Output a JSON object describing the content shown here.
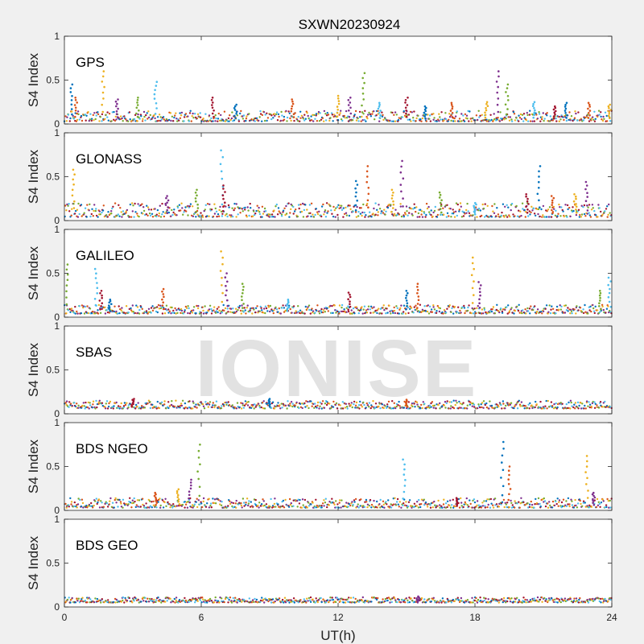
{
  "figure": {
    "title": "SXWN20230924",
    "xlabel": "UT(h)",
    "ylabel": "S4 Index",
    "watermark": "IONISE"
  },
  "colors": {
    "background": "#f0f0f0",
    "axes_bg": "#ffffff",
    "series": [
      "#0072BD",
      "#D95319",
      "#EDB120",
      "#7E2F8E",
      "#77AC30",
      "#4DBEEE",
      "#A2142F"
    ]
  },
  "chart_data": [
    {
      "type": "scatter",
      "label": "GPS",
      "xlim": [
        0,
        24
      ],
      "ylim": [
        0,
        1
      ],
      "xticks": [
        0,
        6,
        12,
        18,
        24
      ],
      "yticks": [
        0,
        0.5,
        1
      ],
      "xtick_labels": [],
      "ytick_labels": [
        "0",
        "0.5",
        "1"
      ],
      "baseline": [
        0.03,
        0.15
      ],
      "spikes": [
        [
          0.3,
          0.45
        ],
        [
          0.5,
          0.3
        ],
        [
          1.7,
          0.6
        ],
        [
          2.3,
          0.28
        ],
        [
          3.2,
          0.3
        ],
        [
          4.0,
          0.48
        ],
        [
          6.5,
          0.3
        ],
        [
          7.5,
          0.22
        ],
        [
          10.0,
          0.28
        ],
        [
          12.0,
          0.32
        ],
        [
          12.5,
          0.3
        ],
        [
          13.1,
          0.58
        ],
        [
          13.8,
          0.24
        ],
        [
          15.0,
          0.3
        ],
        [
          15.8,
          0.2
        ],
        [
          17.0,
          0.24
        ],
        [
          18.5,
          0.25
        ],
        [
          19.0,
          0.6
        ],
        [
          19.4,
          0.45
        ],
        [
          20.6,
          0.25
        ],
        [
          21.5,
          0.2
        ],
        [
          22.0,
          0.24
        ],
        [
          23.0,
          0.24
        ],
        [
          23.9,
          0.22
        ]
      ]
    },
    {
      "type": "scatter",
      "label": "GLONASS",
      "xlim": [
        0,
        24
      ],
      "ylim": [
        0,
        1
      ],
      "xticks": [
        0,
        6,
        12,
        18,
        24
      ],
      "yticks": [
        0,
        0.5,
        1
      ],
      "xtick_labels": [],
      "ytick_labels": [
        "0",
        "0.5",
        "1"
      ],
      "baseline": [
        0.04,
        0.2
      ],
      "spikes": [
        [
          0.4,
          0.58
        ],
        [
          4.5,
          0.28
        ],
        [
          5.8,
          0.35
        ],
        [
          6.9,
          0.8
        ],
        [
          7.0,
          0.4
        ],
        [
          12.8,
          0.45
        ],
        [
          13.3,
          0.62
        ],
        [
          14.4,
          0.35
        ],
        [
          14.8,
          0.68
        ],
        [
          16.5,
          0.32
        ],
        [
          18.0,
          0.2
        ],
        [
          20.3,
          0.3
        ],
        [
          20.8,
          0.62
        ],
        [
          21.4,
          0.28
        ],
        [
          22.4,
          0.3
        ],
        [
          22.9,
          0.44
        ]
      ]
    },
    {
      "type": "scatter",
      "label": "GALILEO",
      "xlim": [
        0,
        24
      ],
      "ylim": [
        0,
        1
      ],
      "xticks": [
        0,
        6,
        12,
        18,
        24
      ],
      "yticks": [
        0,
        0.5,
        1
      ],
      "xtick_labels": [],
      "ytick_labels": [
        "0",
        "0.5",
        "1"
      ],
      "baseline": [
        0.04,
        0.14
      ],
      "spikes": [
        [
          0.1,
          0.6
        ],
        [
          1.4,
          0.55
        ],
        [
          1.6,
          0.3
        ],
        [
          2.0,
          0.2
        ],
        [
          4.3,
          0.32
        ],
        [
          6.9,
          0.75
        ],
        [
          7.1,
          0.5
        ],
        [
          7.8,
          0.38
        ],
        [
          9.8,
          0.2
        ],
        [
          12.5,
          0.28
        ],
        [
          15.0,
          0.3
        ],
        [
          15.5,
          0.38
        ],
        [
          17.9,
          0.68
        ],
        [
          18.2,
          0.4
        ],
        [
          23.5,
          0.3
        ],
        [
          23.9,
          0.45
        ]
      ]
    },
    {
      "type": "scatter",
      "label": "SBAS",
      "xlim": [
        0,
        24
      ],
      "ylim": [
        0,
        1
      ],
      "xticks": [
        0,
        6,
        12,
        18,
        24
      ],
      "yticks": [
        0,
        0.5,
        1
      ],
      "xtick_labels": [],
      "ytick_labels": [
        "0",
        "0.5",
        "1"
      ],
      "baseline": [
        0.06,
        0.15
      ],
      "spikes": [
        [
          3.0,
          0.17
        ],
        [
          9.0,
          0.17
        ],
        [
          15.0,
          0.16
        ]
      ]
    },
    {
      "type": "scatter",
      "label": "BDS NGEO",
      "xlim": [
        0,
        24
      ],
      "ylim": [
        0,
        1
      ],
      "xticks": [
        0,
        6,
        12,
        18,
        24
      ],
      "yticks": [
        0,
        0.5,
        1
      ],
      "xtick_labels": [],
      "ytick_labels": [
        "0",
        "0.5",
        "1"
      ],
      "baseline": [
        0.03,
        0.14
      ],
      "spikes": [
        [
          4.0,
          0.2
        ],
        [
          5.0,
          0.24
        ],
        [
          5.5,
          0.35
        ],
        [
          5.9,
          0.75
        ],
        [
          14.9,
          0.58
        ],
        [
          17.2,
          0.14
        ],
        [
          19.2,
          0.78
        ],
        [
          19.5,
          0.5
        ],
        [
          22.9,
          0.62
        ],
        [
          23.2,
          0.2
        ]
      ]
    },
    {
      "type": "scatter",
      "label": "BDS GEO",
      "xlim": [
        0,
        24
      ],
      "ylim": [
        0,
        1
      ],
      "xticks": [
        0,
        6,
        12,
        18,
        24
      ],
      "yticks": [
        0,
        0.5,
        1
      ],
      "xtick_labels": [
        "0",
        "6",
        "12",
        "18",
        "24"
      ],
      "ytick_labels": [
        "0",
        "0.5",
        "1"
      ],
      "baseline": [
        0.05,
        0.11
      ],
      "spikes": [
        [
          15.5,
          0.12
        ]
      ]
    }
  ]
}
